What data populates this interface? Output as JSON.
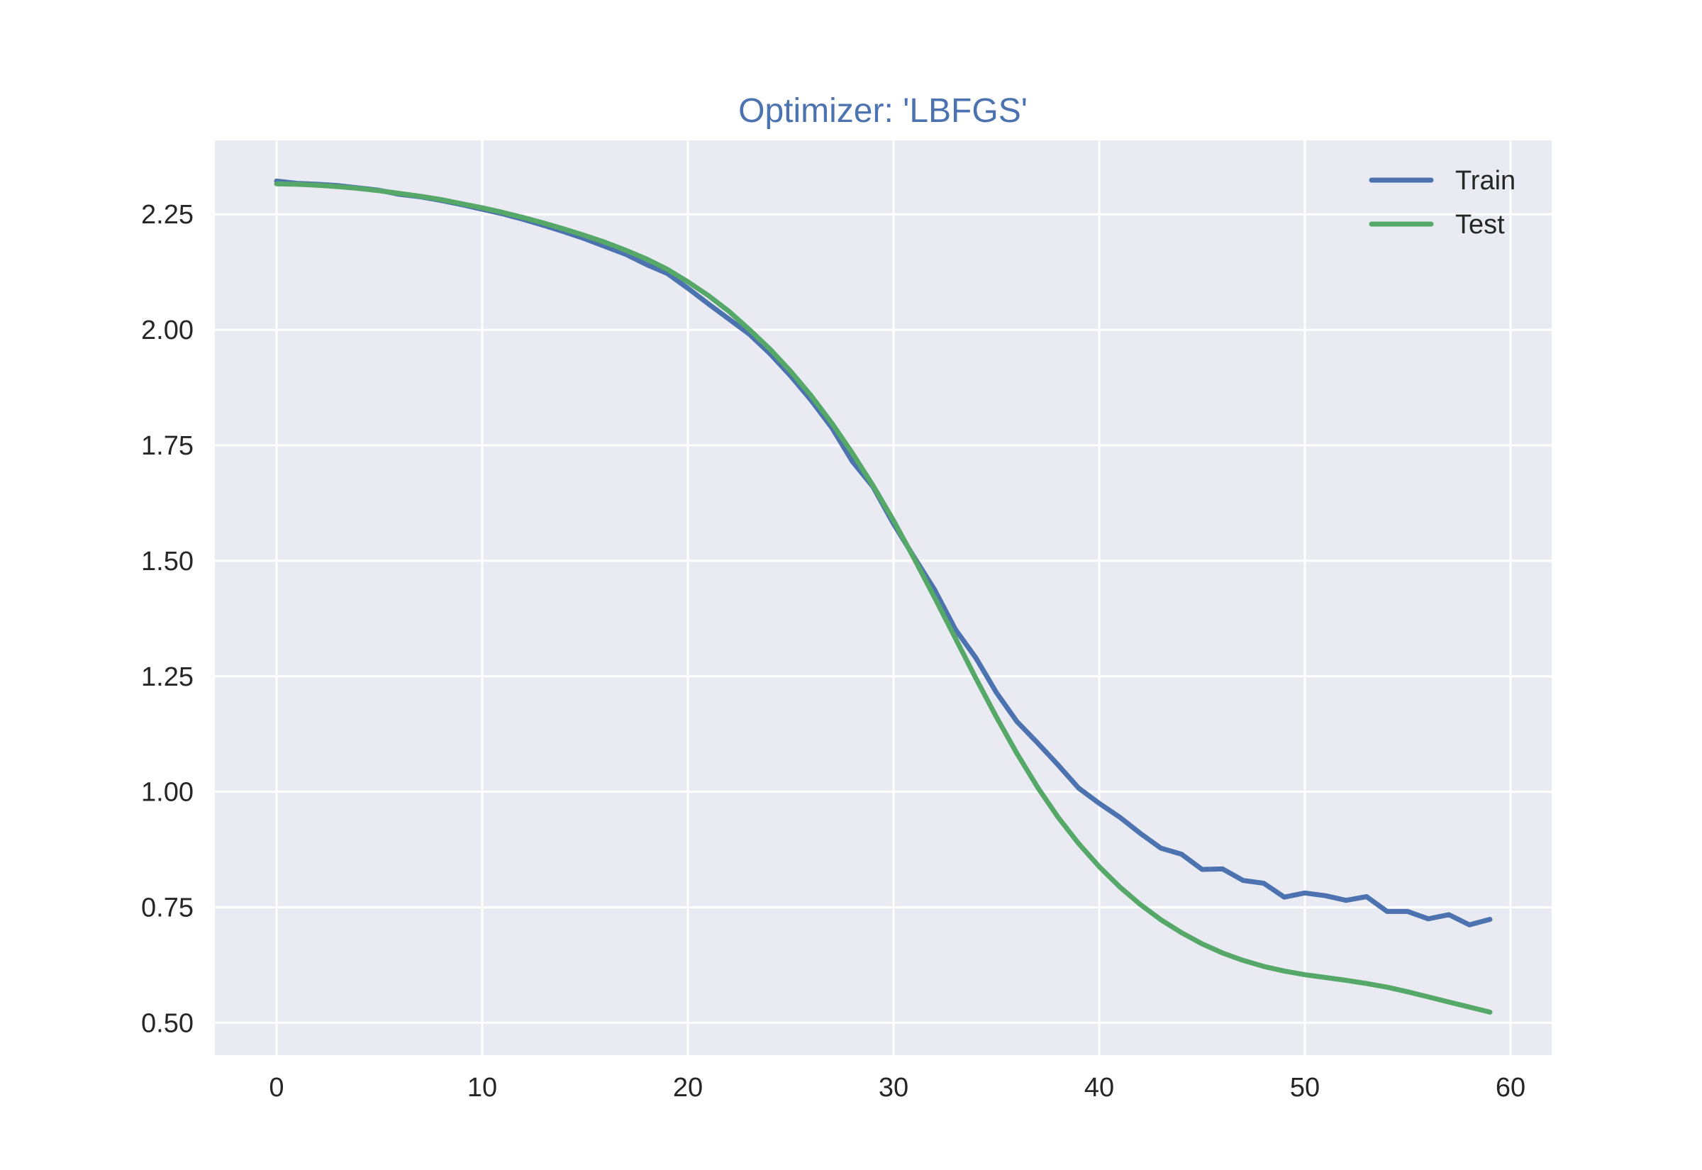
{
  "chart_data": {
    "type": "line",
    "title": "Optimizer: 'LBFGS'",
    "xlabel": "",
    "ylabel": "",
    "xlim": [
      -3,
      62
    ],
    "ylim": [
      0.43,
      2.41
    ],
    "x_ticks": [
      0,
      10,
      20,
      30,
      40,
      50,
      60
    ],
    "y_ticks": [
      0.5,
      0.75,
      1.0,
      1.25,
      1.5,
      1.75,
      2.0,
      2.25
    ],
    "y_tick_labels": [
      "0.50",
      "0.75",
      "1.00",
      "1.25",
      "1.50",
      "1.75",
      "2.00",
      "2.25"
    ],
    "x_tick_labels": [
      "0",
      "10",
      "20",
      "30",
      "40",
      "50",
      "60"
    ],
    "grid": true,
    "legend_position": "top-right",
    "colors": {
      "plot_background": "#eaeaf2",
      "grid": "#ffffff",
      "title": "#4c72b0",
      "text": "#262626"
    },
    "x": [
      0,
      1,
      2,
      3,
      4,
      5,
      6,
      7,
      8,
      9,
      10,
      11,
      12,
      13,
      14,
      15,
      16,
      17,
      18,
      19,
      20,
      21,
      22,
      23,
      24,
      25,
      26,
      27,
      28,
      29,
      30,
      31,
      32,
      33,
      34,
      35,
      36,
      37,
      38,
      39,
      40,
      41,
      42,
      43,
      44,
      45,
      46,
      47,
      48,
      49,
      50,
      51,
      52,
      53,
      54,
      55,
      56,
      57,
      58,
      59
    ],
    "series": [
      {
        "name": "Train",
        "color": "#4c72b0",
        "values": [
          2.322,
          2.317,
          2.315,
          2.312,
          2.307,
          2.302,
          2.293,
          2.288,
          2.28,
          2.271,
          2.261,
          2.251,
          2.239,
          2.226,
          2.212,
          2.197,
          2.18,
          2.163,
          2.141,
          2.122,
          2.09,
          2.056,
          2.023,
          1.99,
          1.948,
          1.9,
          1.847,
          1.788,
          1.715,
          1.66,
          1.58,
          1.508,
          1.437,
          1.352,
          1.29,
          1.215,
          1.152,
          1.106,
          1.058,
          1.008,
          0.975,
          0.945,
          0.91,
          0.878,
          0.865,
          0.832,
          0.833,
          0.808,
          0.802,
          0.772,
          0.781,
          0.775,
          0.765,
          0.773,
          0.741,
          0.741,
          0.725,
          0.734,
          0.712,
          0.724
        ]
      },
      {
        "name": "Test",
        "color": "#55a868",
        "values": [
          2.316,
          2.315,
          2.313,
          2.31,
          2.306,
          2.301,
          2.295,
          2.289,
          2.282,
          2.273,
          2.264,
          2.254,
          2.243,
          2.231,
          2.218,
          2.204,
          2.189,
          2.172,
          2.153,
          2.131,
          2.104,
          2.074,
          2.04,
          2.0,
          1.958,
          1.91,
          1.857,
          1.798,
          1.733,
          1.663,
          1.587,
          1.505,
          1.42,
          1.333,
          1.246,
          1.162,
          1.083,
          1.01,
          0.945,
          0.888,
          0.838,
          0.794,
          0.756,
          0.723,
          0.695,
          0.671,
          0.651,
          0.635,
          0.622,
          0.612,
          0.604,
          0.598,
          0.592,
          0.585,
          0.577,
          0.567,
          0.556,
          0.545,
          0.534,
          0.523
        ]
      }
    ]
  }
}
